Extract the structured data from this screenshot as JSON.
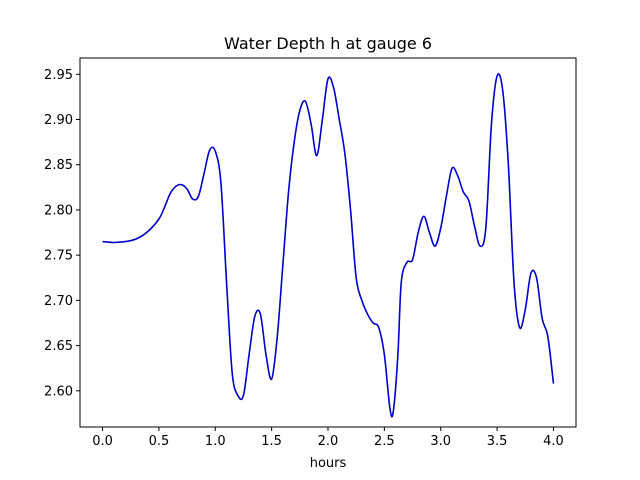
{
  "chart_data": {
    "type": "line",
    "title": "Water Depth h at gauge 6",
    "xlabel": "hours",
    "ylabel": "",
    "xlim": [
      -0.2,
      4.2
    ],
    "ylim": [
      2.56,
      2.968
    ],
    "xticks": [
      0.0,
      0.5,
      1.0,
      1.5,
      2.0,
      2.5,
      3.0,
      3.5,
      4.0
    ],
    "xtick_labels": [
      "0.0",
      "0.5",
      "1.0",
      "1.5",
      "2.0",
      "2.5",
      "3.0",
      "3.5",
      "4.0"
    ],
    "yticks": [
      2.6,
      2.65,
      2.7,
      2.75,
      2.8,
      2.85,
      2.9,
      2.95
    ],
    "ytick_labels": [
      "2.60",
      "2.65",
      "2.70",
      "2.75",
      "2.80",
      "2.85",
      "2.90",
      "2.95"
    ],
    "grid": false,
    "series": [
      {
        "color": "#0000cc",
        "x": [
          0.0,
          0.1,
          0.2,
          0.3,
          0.4,
          0.5,
          0.55,
          0.6,
          0.65,
          0.7,
          0.75,
          0.8,
          0.85,
          0.9,
          0.95,
          1.0,
          1.05,
          1.1,
          1.15,
          1.2,
          1.25,
          1.3,
          1.35,
          1.4,
          1.45,
          1.5,
          1.55,
          1.6,
          1.65,
          1.7,
          1.75,
          1.8,
          1.85,
          1.9,
          1.95,
          2.0,
          2.05,
          2.1,
          2.15,
          2.2,
          2.25,
          2.3,
          2.35,
          2.4,
          2.45,
          2.5,
          2.55,
          2.58,
          2.62,
          2.65,
          2.7,
          2.75,
          2.8,
          2.85,
          2.9,
          2.95,
          3.0,
          3.05,
          3.1,
          3.15,
          3.2,
          3.25,
          3.3,
          3.35,
          3.4,
          3.45,
          3.5,
          3.55,
          3.6,
          3.65,
          3.7,
          3.75,
          3.8,
          3.85,
          3.9,
          3.95,
          4.0
        ],
        "y": [
          2.765,
          2.764,
          2.765,
          2.768,
          2.776,
          2.79,
          2.803,
          2.818,
          2.826,
          2.828,
          2.823,
          2.812,
          2.815,
          2.84,
          2.866,
          2.865,
          2.83,
          2.72,
          2.62,
          2.595,
          2.595,
          2.64,
          2.682,
          2.685,
          2.64,
          2.613,
          2.66,
          2.74,
          2.82,
          2.875,
          2.91,
          2.92,
          2.895,
          2.86,
          2.9,
          2.945,
          2.935,
          2.9,
          2.862,
          2.8,
          2.725,
          2.7,
          2.685,
          2.675,
          2.67,
          2.64,
          2.58,
          2.578,
          2.64,
          2.72,
          2.742,
          2.745,
          2.775,
          2.793,
          2.775,
          2.76,
          2.78,
          2.815,
          2.846,
          2.838,
          2.82,
          2.81,
          2.782,
          2.76,
          2.78,
          2.895,
          2.948,
          2.932,
          2.85,
          2.72,
          2.67,
          2.69,
          2.73,
          2.725,
          2.68,
          2.66,
          2.608
        ]
      }
    ]
  }
}
